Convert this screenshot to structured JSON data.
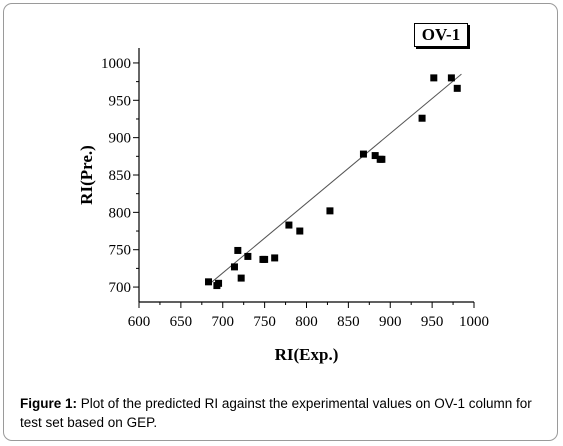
{
  "chart_data": {
    "type": "scatter",
    "panel_label": "OV-1",
    "xlabel": "RI(Exp.)",
    "ylabel": "RI(Pre.)",
    "xlim": [
      600,
      1000
    ],
    "ylim": [
      680,
      1020
    ],
    "x_ticks": [
      600,
      650,
      700,
      750,
      800,
      850,
      900,
      950,
      1000
    ],
    "y_ticks": [
      700,
      750,
      800,
      850,
      900,
      950,
      1000
    ],
    "grid": false,
    "fit_line": {
      "x": [
        683,
        985
      ],
      "y": [
        703,
        985
      ]
    },
    "points": [
      {
        "x": 683,
        "y": 707
      },
      {
        "x": 693,
        "y": 702
      },
      {
        "x": 695,
        "y": 705
      },
      {
        "x": 714,
        "y": 727
      },
      {
        "x": 718,
        "y": 749
      },
      {
        "x": 722,
        "y": 712
      },
      {
        "x": 730,
        "y": 741
      },
      {
        "x": 748,
        "y": 737
      },
      {
        "x": 750,
        "y": 737
      },
      {
        "x": 762,
        "y": 739
      },
      {
        "x": 779,
        "y": 783
      },
      {
        "x": 792,
        "y": 775
      },
      {
        "x": 828,
        "y": 802
      },
      {
        "x": 868,
        "y": 878
      },
      {
        "x": 882,
        "y": 876
      },
      {
        "x": 888,
        "y": 871
      },
      {
        "x": 890,
        "y": 871
      },
      {
        "x": 938,
        "y": 926
      },
      {
        "x": 952,
        "y": 980
      },
      {
        "x": 973,
        "y": 980
      },
      {
        "x": 980,
        "y": 966
      }
    ]
  },
  "caption": {
    "label": "Figure 1:",
    "text": " Plot of the predicted RI against the experimental values on OV-1 column for test set based on GEP."
  }
}
